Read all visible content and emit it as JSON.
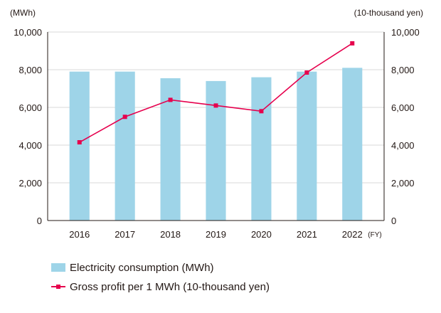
{
  "chart_data": {
    "type": "bar",
    "categories": [
      "2016",
      "2017",
      "2018",
      "2019",
      "2020",
      "2021",
      "2022"
    ],
    "x_suffix": "(FY)",
    "left_axis": {
      "unit_label": "(MWh)",
      "ylim": [
        0,
        10000
      ],
      "ticks": [
        "0",
        "2,000",
        "4,000",
        "6,000",
        "8,000",
        "10,000"
      ]
    },
    "right_axis": {
      "unit_label": "(10-thousand yen)",
      "ylim": [
        0,
        10000
      ],
      "ticks": [
        "0",
        "2,000",
        "4,000",
        "6,000",
        "8,000",
        "10,000"
      ]
    },
    "series": [
      {
        "name": "Electricity consumption (MWh)",
        "kind": "bar",
        "axis": "left",
        "color": "#9ed4e8",
        "values": [
          7900,
          7900,
          7550,
          7400,
          7600,
          7900,
          8100
        ]
      },
      {
        "name": "Gross profit per 1 MWh (10-thousand yen)",
        "kind": "line",
        "axis": "right",
        "color": "#e6004d",
        "values": [
          4150,
          5500,
          6400,
          6100,
          5800,
          7850,
          9400
        ]
      }
    ],
    "grid": "horizontal",
    "legend_position": "bottom-left"
  }
}
